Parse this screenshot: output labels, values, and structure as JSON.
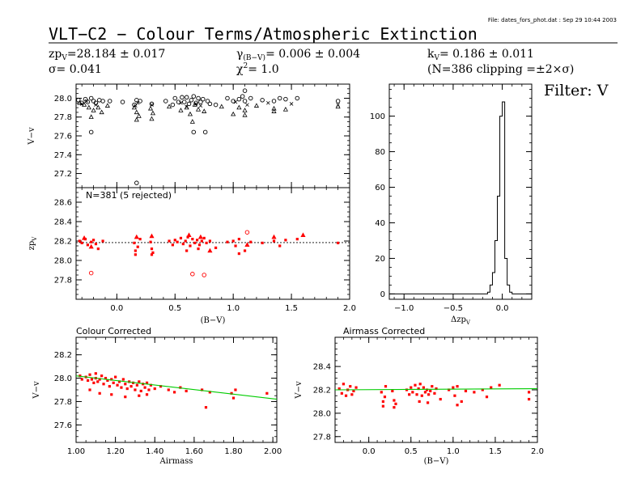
{
  "file_label": "File: dates_fors_phot.dat : Sep 29 10:44 2003",
  "title": "VLT−C2 − Colour Terms/Atmospheric Extinction",
  "header": {
    "zp_label": "zp",
    "zp_sub": "V",
    "zp_value": "=28.184 ± 0.017",
    "sigma": "σ= 0.041",
    "gamma_label": "γ",
    "gamma_sub": "(B−V)",
    "gamma_value": "= 0.006 ± 0.004",
    "chi_label": "χ",
    "chi_sup": "2",
    "chi_value": "=  1.0",
    "k_label": "k",
    "k_sub": "V",
    "k_value": "= 0.186 ± 0.011",
    "n_clip": "(N=386 clipping =±2×σ)"
  },
  "filter_label": "Filter: V",
  "colors": {
    "points": "#ff0000",
    "fit": "#00cc00",
    "axes": "#000000"
  },
  "chart_data": [
    {
      "id": "v_minus_v_vs_bv",
      "type": "scatter",
      "ylabel": "V−v",
      "xlim": [
        -0.35,
        2.0
      ],
      "ylim": [
        27.05,
        28.15
      ],
      "yticks": [
        "27.2",
        "27.4",
        "27.6",
        "27.8",
        "28.0"
      ],
      "ytick_values": [
        27.2,
        27.4,
        27.6,
        27.8,
        28.0
      ],
      "series": [
        {
          "marker": "circle",
          "x": [
            -0.33,
            -0.3,
            -0.27,
            -0.25,
            -0.22,
            -0.2,
            -0.18,
            -0.15,
            -0.12,
            -0.06,
            0.05,
            0.15,
            0.17,
            0.2,
            0.3,
            0.42,
            0.48,
            0.5,
            0.53,
            0.56,
            0.58,
            0.6,
            0.62,
            0.64,
            0.66,
            0.68,
            0.7,
            0.72,
            0.74,
            0.78,
            0.8,
            0.85,
            0.95,
            1.0,
            1.05,
            1.08,
            1.1,
            1.15,
            1.25,
            1.35,
            1.4,
            1.45,
            1.55,
            1.9,
            0.66,
            0.76,
            -0.22,
            0.17,
            1.1
          ],
          "y": [
            27.98,
            27.95,
            27.99,
            27.96,
            28.0,
            27.97,
            27.95,
            27.98,
            27.97,
            27.97,
            27.96,
            27.93,
            27.98,
            27.97,
            27.94,
            27.97,
            27.93,
            28.0,
            27.96,
            28.01,
            27.96,
            28.01,
            27.94,
            27.98,
            28.02,
            27.95,
            28.0,
            27.96,
            27.99,
            27.97,
            27.94,
            27.93,
            28.0,
            27.97,
            27.99,
            28.02,
            27.97,
            28.0,
            27.98,
            27.97,
            28.0,
            27.99,
            28.0,
            27.97,
            27.64,
            27.64,
            27.64,
            27.1,
            28.08
          ]
        },
        {
          "marker": "triangle",
          "x": [
            -0.32,
            -0.28,
            -0.24,
            -0.2,
            -0.16,
            -0.13,
            -0.08,
            0.15,
            0.17,
            0.19,
            0.29,
            0.31,
            0.45,
            0.55,
            0.6,
            0.63,
            0.67,
            0.7,
            0.75,
            0.9,
            1.0,
            1.05,
            1.1,
            1.2,
            1.35,
            1.45,
            1.9,
            -0.22,
            0.17,
            0.3,
            0.65,
            1.1,
            1.35
          ],
          "y": [
            27.95,
            27.93,
            27.9,
            27.87,
            27.9,
            27.85,
            27.92,
            27.9,
            27.85,
            27.81,
            27.89,
            27.84,
            27.91,
            27.87,
            27.9,
            27.83,
            27.93,
            27.88,
            27.86,
            27.91,
            27.83,
            27.9,
            27.87,
            27.92,
            27.89,
            27.88,
            27.91,
            27.8,
            27.77,
            27.78,
            27.75,
            27.82,
            27.86
          ]
        },
        {
          "marker": "x",
          "x": [
            -0.3,
            -0.26,
            -0.18,
            0.16,
            0.18,
            0.3,
            0.55,
            0.6,
            0.68,
            0.72,
            1.02,
            1.12,
            1.3,
            1.5,
            1.9
          ],
          "y": [
            27.94,
            27.97,
            27.93,
            27.92,
            27.95,
            27.93,
            27.95,
            27.91,
            27.94,
            27.92,
            27.96,
            27.93,
            27.95,
            27.94,
            27.93
          ]
        }
      ]
    },
    {
      "id": "zp_vs_bv",
      "type": "scatter",
      "ylabel": "zp",
      "ylabel_sub": "V",
      "xlabel": "(B−V)",
      "annotation": "N=381 (5 rejected)",
      "xlim": [
        -0.35,
        2.0
      ],
      "ylim": [
        27.6,
        28.75
      ],
      "xticks": [
        "0.0",
        "0.5",
        "1.0",
        "1.5",
        "2.0"
      ],
      "xtick_values": [
        0.0,
        0.5,
        1.0,
        1.5,
        2.0
      ],
      "yticks": [
        "27.8",
        "28.0",
        "28.2",
        "28.4",
        "28.6"
      ],
      "ytick_values": [
        27.8,
        28.0,
        28.2,
        28.4,
        28.6
      ],
      "reference_line": 28.184,
      "series": [
        {
          "marker": "square",
          "x": [
            -0.32,
            -0.3,
            -0.27,
            -0.25,
            -0.22,
            -0.2,
            -0.18,
            -0.16,
            -0.12,
            0.15,
            0.16,
            0.18,
            0.2,
            0.29,
            0.3,
            0.31,
            0.45,
            0.48,
            0.5,
            0.52,
            0.55,
            0.57,
            0.59,
            0.61,
            0.63,
            0.65,
            0.67,
            0.69,
            0.71,
            0.73,
            0.75,
            0.77,
            0.8,
            0.85,
            0.95,
            1.0,
            1.02,
            1.05,
            1.1,
            1.15,
            1.25,
            1.35,
            1.4,
            1.45,
            1.55,
            1.9,
            0.6,
            0.7,
            0.16,
            0.3,
            1.05
          ],
          "y": [
            28.2,
            28.18,
            28.22,
            28.16,
            28.19,
            28.21,
            28.17,
            28.12,
            28.2,
            28.18,
            28.1,
            28.14,
            28.22,
            28.19,
            28.12,
            28.08,
            28.2,
            28.16,
            28.21,
            28.19,
            28.23,
            28.17,
            28.2,
            28.24,
            28.15,
            28.22,
            28.18,
            28.21,
            28.16,
            28.2,
            28.23,
            28.18,
            28.2,
            28.13,
            28.19,
            28.2,
            28.15,
            28.22,
            28.1,
            28.19,
            28.18,
            28.2,
            28.15,
            28.21,
            28.22,
            28.18,
            28.1,
            28.12,
            28.06,
            28.06,
            28.07
          ]
        },
        {
          "marker": "triangle",
          "x": [
            -0.28,
            -0.22,
            0.17,
            0.3,
            0.62,
            0.72,
            0.8,
            1.12,
            1.35,
            1.6
          ],
          "y": [
            28.23,
            28.14,
            28.24,
            28.25,
            28.26,
            28.24,
            28.1,
            28.16,
            28.24,
            28.26
          ]
        },
        {
          "marker": "open-circle",
          "x": [
            -0.22,
            0.65,
            0.75,
            1.12
          ],
          "y": [
            27.87,
            27.86,
            27.85,
            28.29
          ]
        }
      ]
    },
    {
      "id": "hist_dzp",
      "type": "histogram",
      "xlabel": "Δzp",
      "xlabel_sub": "V",
      "xlim": [
        -1.15,
        0.3
      ],
      "ylim": [
        -3,
        118
      ],
      "xticks": [
        "−1.0",
        "−0.5",
        "0.0"
      ],
      "xtick_values": [
        -1.0,
        -0.5,
        0.0
      ],
      "yticks": [
        "0",
        "20",
        "40",
        "60",
        "80",
        "100"
      ],
      "ytick_values": [
        0,
        20,
        40,
        60,
        80,
        100
      ],
      "bins": [
        [
          -1.15,
          -0.15,
          0
        ],
        [
          -0.15,
          -0.125,
          1
        ],
        [
          -0.125,
          -0.1,
          5
        ],
        [
          -0.1,
          -0.075,
          12
        ],
        [
          -0.075,
          -0.05,
          30
        ],
        [
          -0.05,
          -0.025,
          55
        ],
        [
          -0.025,
          0.0,
          100
        ],
        [
          0.0,
          0.025,
          108
        ],
        [
          0.025,
          0.05,
          20
        ],
        [
          0.05,
          0.075,
          5
        ],
        [
          0.075,
          0.1,
          1
        ],
        [
          0.1,
          0.3,
          0
        ]
      ]
    },
    {
      "id": "colour_corrected",
      "type": "scatter",
      "subtitle": "Colour Corrected",
      "xlabel": "Airmass",
      "ylabel": "V−v",
      "xlim": [
        1.0,
        2.02
      ],
      "ylim": [
        27.45,
        28.35
      ],
      "xticks": [
        "1.00",
        "1.20",
        "1.40",
        "1.60",
        "1.80",
        "2.00"
      ],
      "xtick_values": [
        1.0,
        1.2,
        1.4,
        1.6,
        1.8,
        2.0
      ],
      "yticks": [
        "27.6",
        "27.8",
        "28.0",
        "28.2"
      ],
      "ytick_values": [
        27.6,
        27.8,
        28.0,
        28.2
      ],
      "fit_line": {
        "x": [
          1.0,
          2.02
        ],
        "y": [
          28.02,
          27.82
        ]
      },
      "series": [
        {
          "marker": "square",
          "x": [
            1.02,
            1.03,
            1.05,
            1.06,
            1.07,
            1.08,
            1.09,
            1.1,
            1.1,
            1.11,
            1.12,
            1.13,
            1.14,
            1.15,
            1.16,
            1.17,
            1.18,
            1.19,
            1.2,
            1.21,
            1.22,
            1.23,
            1.24,
            1.25,
            1.26,
            1.27,
            1.28,
            1.29,
            1.3,
            1.31,
            1.32,
            1.33,
            1.34,
            1.35,
            1.36,
            1.37,
            1.38,
            1.4,
            1.43,
            1.47,
            1.5,
            1.53,
            1.56,
            1.64,
            1.66,
            1.68,
            1.79,
            1.8,
            1.81,
            1.97,
            1.07,
            1.12,
            1.18,
            1.25,
            1.32,
            1.36
          ],
          "y": [
            28.02,
            27.99,
            28.01,
            27.98,
            28.03,
            27.99,
            27.96,
            28.0,
            28.04,
            27.97,
            27.99,
            28.02,
            27.95,
            28.0,
            27.98,
            27.93,
            27.99,
            27.96,
            28.01,
            27.94,
            27.97,
            27.92,
            27.99,
            27.95,
            27.91,
            27.97,
            27.93,
            27.96,
            27.9,
            27.94,
            27.97,
            27.89,
            27.95,
            27.92,
            27.96,
            27.9,
            27.94,
            27.91,
            27.93,
            27.9,
            27.88,
            27.92,
            27.89,
            27.9,
            27.75,
            27.88,
            27.87,
            27.83,
            27.9,
            27.87,
            27.9,
            27.87,
            27.86,
            27.84,
            27.85,
            27.86
          ]
        }
      ]
    },
    {
      "id": "airmass_corrected",
      "type": "scatter",
      "subtitle": "Airmass Corrected",
      "xlabel": "(B−V)",
      "ylabel": "V−v",
      "xlim": [
        -0.4,
        2.0
      ],
      "ylim": [
        27.75,
        28.65
      ],
      "xticks": [
        "0.0",
        "0.5",
        "1.0",
        "1.5",
        "2.0"
      ],
      "xtick_values": [
        0.0,
        0.5,
        1.0,
        1.5,
        2.0
      ],
      "yticks": [
        "27.8",
        "28.0",
        "28.2",
        "28.4"
      ],
      "ytick_values": [
        27.8,
        28.0,
        28.2,
        28.4
      ],
      "fit_line": {
        "x": [
          -0.4,
          2.0
        ],
        "y": [
          28.2,
          28.21
        ]
      },
      "series": [
        {
          "marker": "square",
          "x": [
            -0.35,
            -0.32,
            -0.3,
            -0.27,
            -0.25,
            -0.22,
            -0.2,
            -0.18,
            -0.15,
            0.15,
            0.17,
            0.19,
            0.2,
            0.28,
            0.3,
            0.32,
            0.45,
            0.48,
            0.5,
            0.52,
            0.55,
            0.57,
            0.59,
            0.61,
            0.63,
            0.65,
            0.67,
            0.69,
            0.71,
            0.73,
            0.75,
            0.78,
            0.8,
            0.85,
            0.95,
            1.0,
            1.02,
            1.05,
            1.1,
            1.15,
            1.25,
            1.35,
            1.4,
            1.45,
            1.55,
            1.9,
            0.17,
            0.3,
            0.6,
            0.7,
            1.05,
            1.9
          ],
          "y": [
            28.21,
            28.17,
            28.25,
            28.15,
            28.2,
            28.23,
            28.16,
            28.19,
            28.22,
            28.18,
            28.1,
            28.14,
            28.23,
            28.19,
            28.11,
            28.08,
            28.2,
            28.16,
            28.22,
            28.18,
            28.24,
            28.16,
            28.21,
            28.25,
            28.15,
            28.22,
            28.18,
            28.2,
            28.16,
            28.19,
            28.23,
            28.17,
            28.21,
            28.12,
            28.2,
            28.22,
            28.15,
            28.23,
            28.1,
            28.19,
            28.18,
            28.2,
            28.14,
            28.22,
            28.24,
            28.18,
            28.06,
            28.05,
            28.1,
            28.09,
            28.07,
            28.12
          ]
        }
      ]
    }
  ]
}
